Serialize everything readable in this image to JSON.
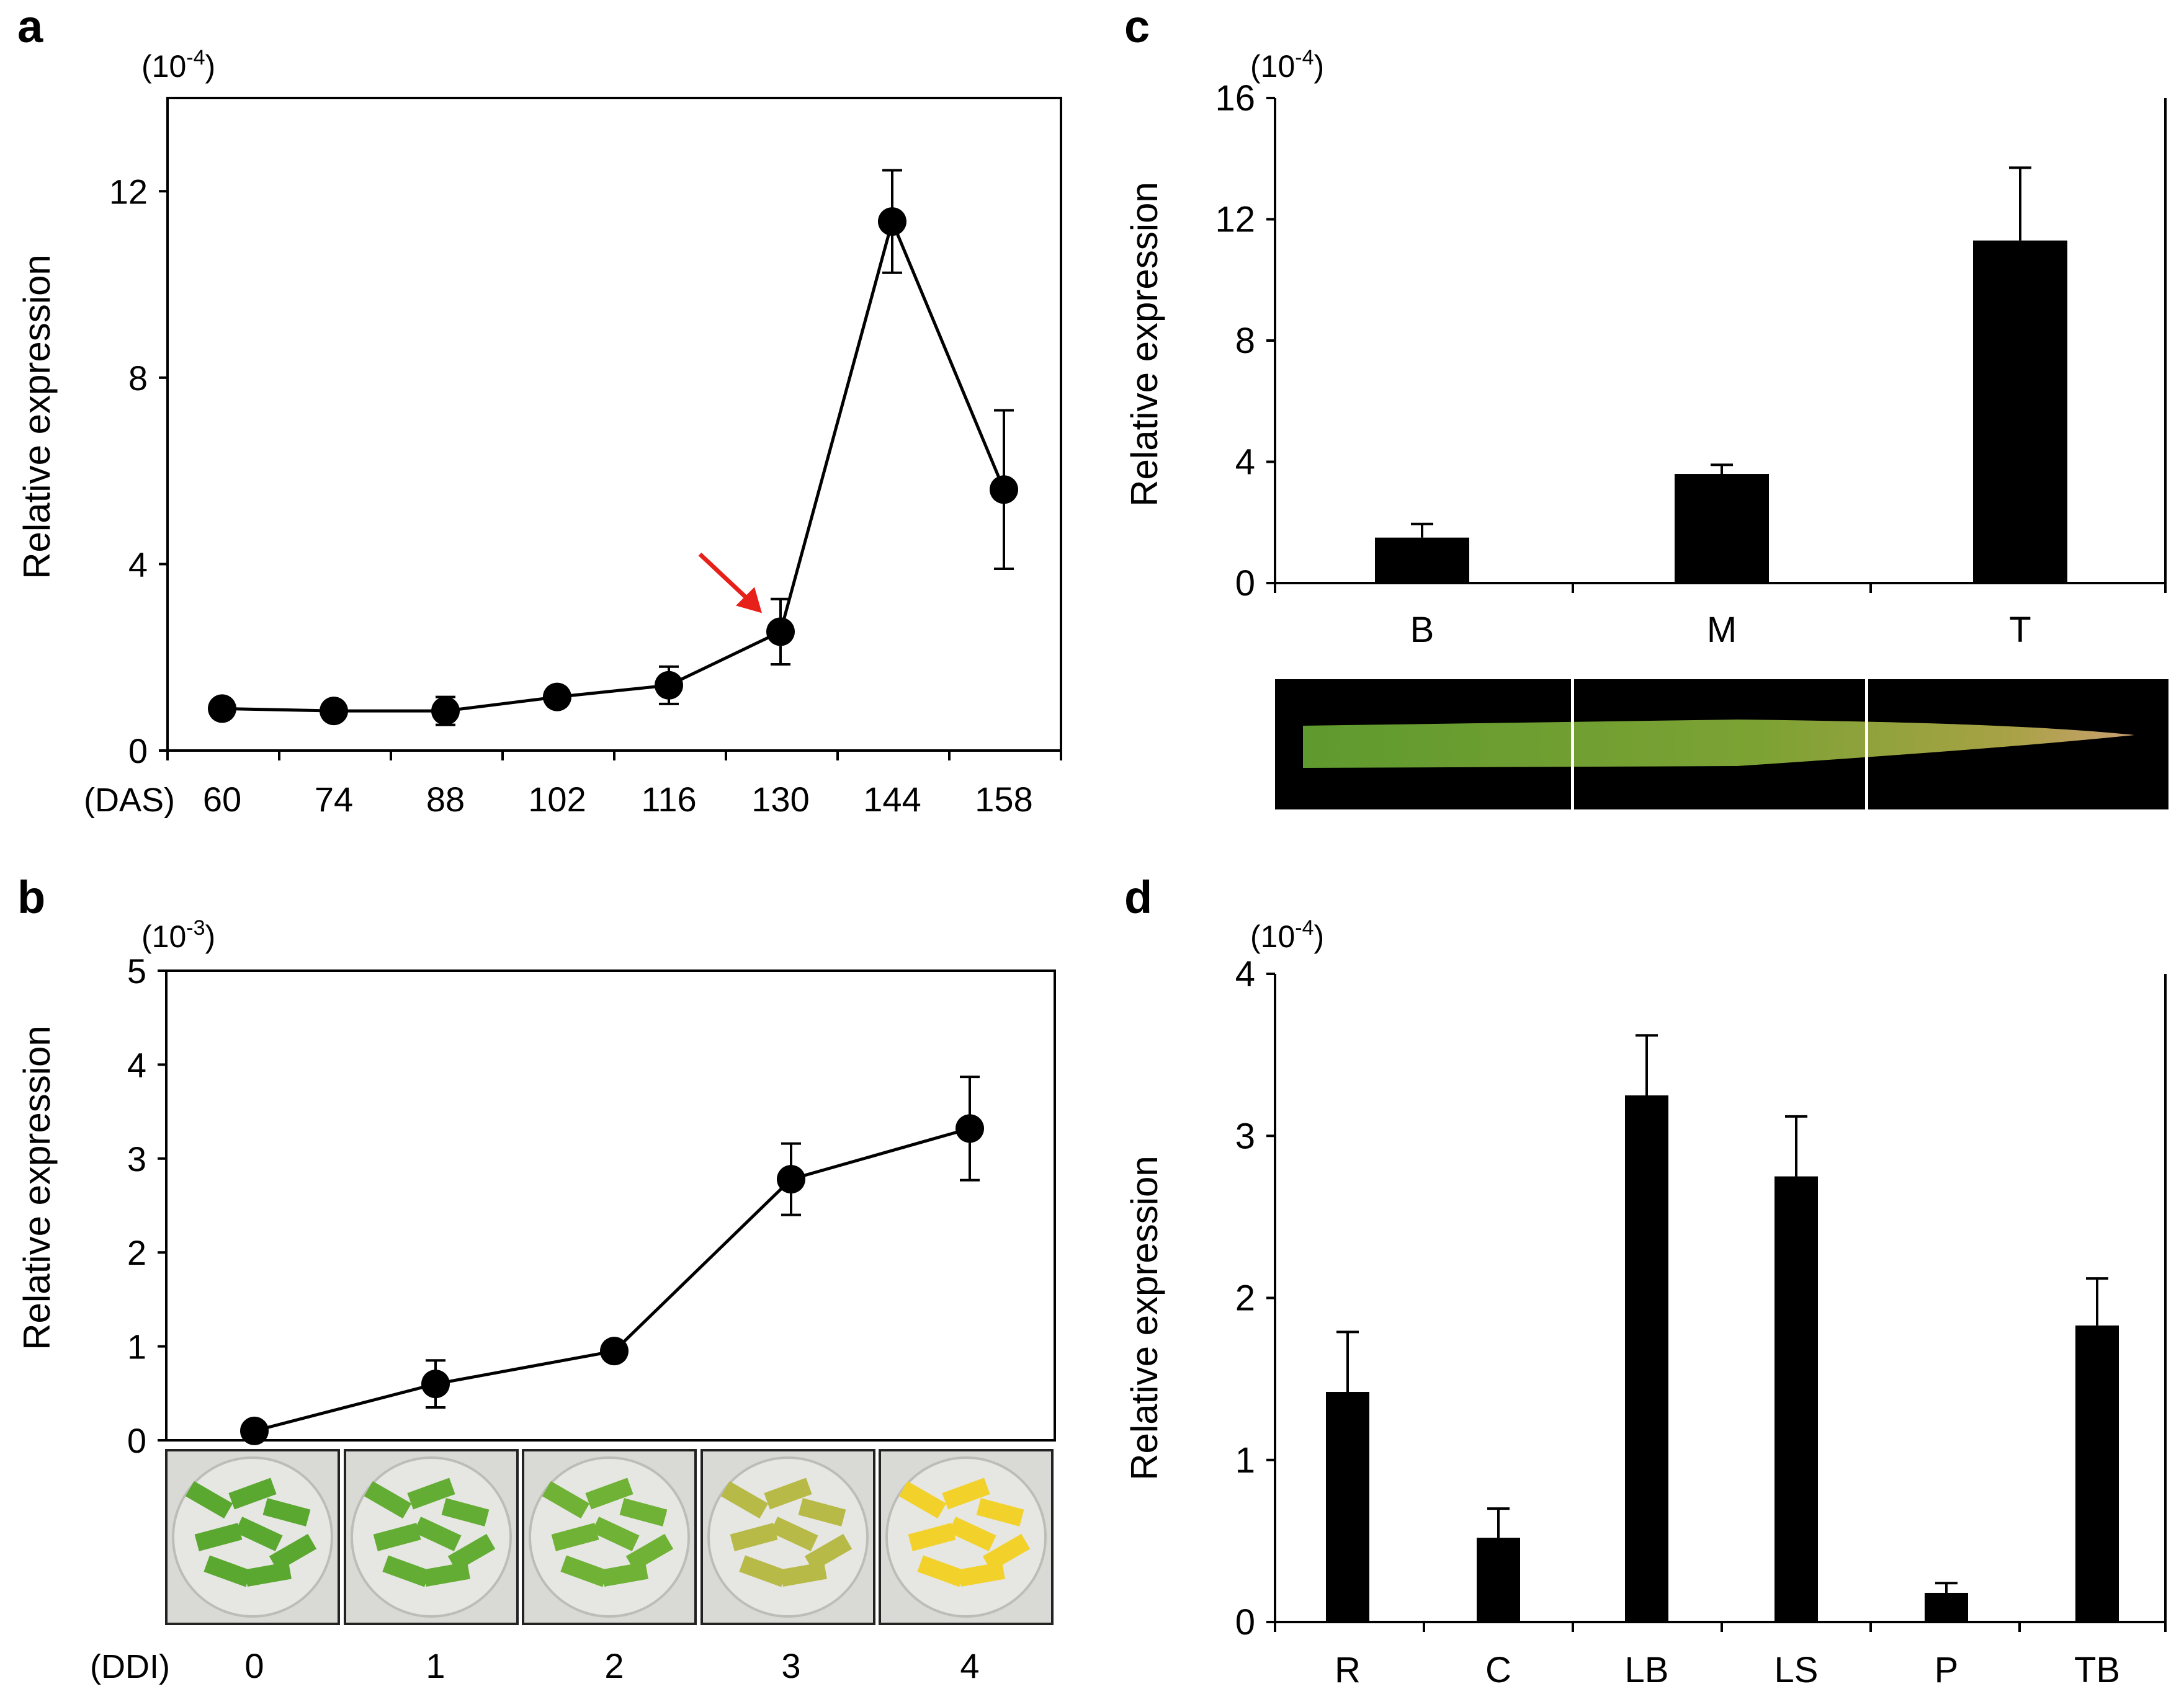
{
  "chart_data": [
    {
      "panel": "a",
      "type": "line",
      "ylabel": "Relative expression",
      "scale_note": "(10",
      "scale_exp": "-4",
      "scale_close": ")",
      "x_unit": "(DAS)",
      "ylim": [
        0,
        14
      ],
      "yticks": [
        "0",
        "4",
        "8",
        "12"
      ],
      "ytick_values": [
        0,
        4,
        8,
        12
      ],
      "categories": [
        "60",
        "74",
        "88",
        "102",
        "116",
        "130",
        "144",
        "158"
      ],
      "values": [
        0.9,
        0.85,
        0.85,
        1.15,
        1.4,
        2.55,
        11.35,
        5.6
      ],
      "errors": [
        0.0,
        0.0,
        0.3,
        0.2,
        0.4,
        0.7,
        1.1,
        1.7
      ],
      "arrow_at": "130",
      "arrow_color": "#e8201a"
    },
    {
      "panel": "b",
      "type": "line",
      "ylabel": "Relative expression",
      "scale_note": "(10",
      "scale_exp": "-3",
      "scale_close": ")",
      "x_unit": "(DDI)",
      "ylim": [
        0,
        5
      ],
      "yticks": [
        "0",
        "1",
        "2",
        "3",
        "4",
        "5"
      ],
      "ytick_values": [
        0,
        1,
        2,
        3,
        4,
        5
      ],
      "categories": [
        "0",
        "1",
        "2",
        "3",
        "4"
      ],
      "values": [
        0.1,
        0.6,
        0.95,
        2.78,
        3.32
      ],
      "errors": [
        0.0,
        0.25,
        0.1,
        0.38,
        0.55
      ],
      "photo_colors": [
        "#5aa830",
        "#63ad34",
        "#6fb236",
        "#b7ba46",
        "#f2d22a"
      ]
    },
    {
      "panel": "c",
      "type": "bar",
      "ylabel": "Relative expression",
      "scale_note": "(10",
      "scale_exp": "-4",
      "scale_close": ")",
      "ylim": [
        0,
        16
      ],
      "yticks": [
        "0",
        "4",
        "8",
        "12",
        "16"
      ],
      "ytick_values": [
        0,
        4,
        8,
        12,
        16
      ],
      "categories": [
        "B",
        "M",
        "T"
      ],
      "values": [
        1.5,
        3.6,
        11.3
      ],
      "errors": [
        0.45,
        0.3,
        2.4
      ]
    },
    {
      "panel": "d",
      "type": "bar",
      "ylabel": "Relative expression",
      "scale_note": "(10",
      "scale_exp": "-4",
      "scale_close": ")",
      "ylim": [
        0,
        4
      ],
      "yticks": [
        "0",
        "1",
        "2",
        "3",
        "4"
      ],
      "ytick_values": [
        0,
        1,
        2,
        3,
        4
      ],
      "categories": [
        "R",
        "C",
        "LB",
        "LS",
        "P",
        "TB"
      ],
      "values": [
        1.42,
        0.52,
        3.25,
        2.75,
        0.18,
        1.83
      ],
      "errors": [
        0.37,
        0.18,
        0.37,
        0.37,
        0.06,
        0.29
      ]
    }
  ]
}
